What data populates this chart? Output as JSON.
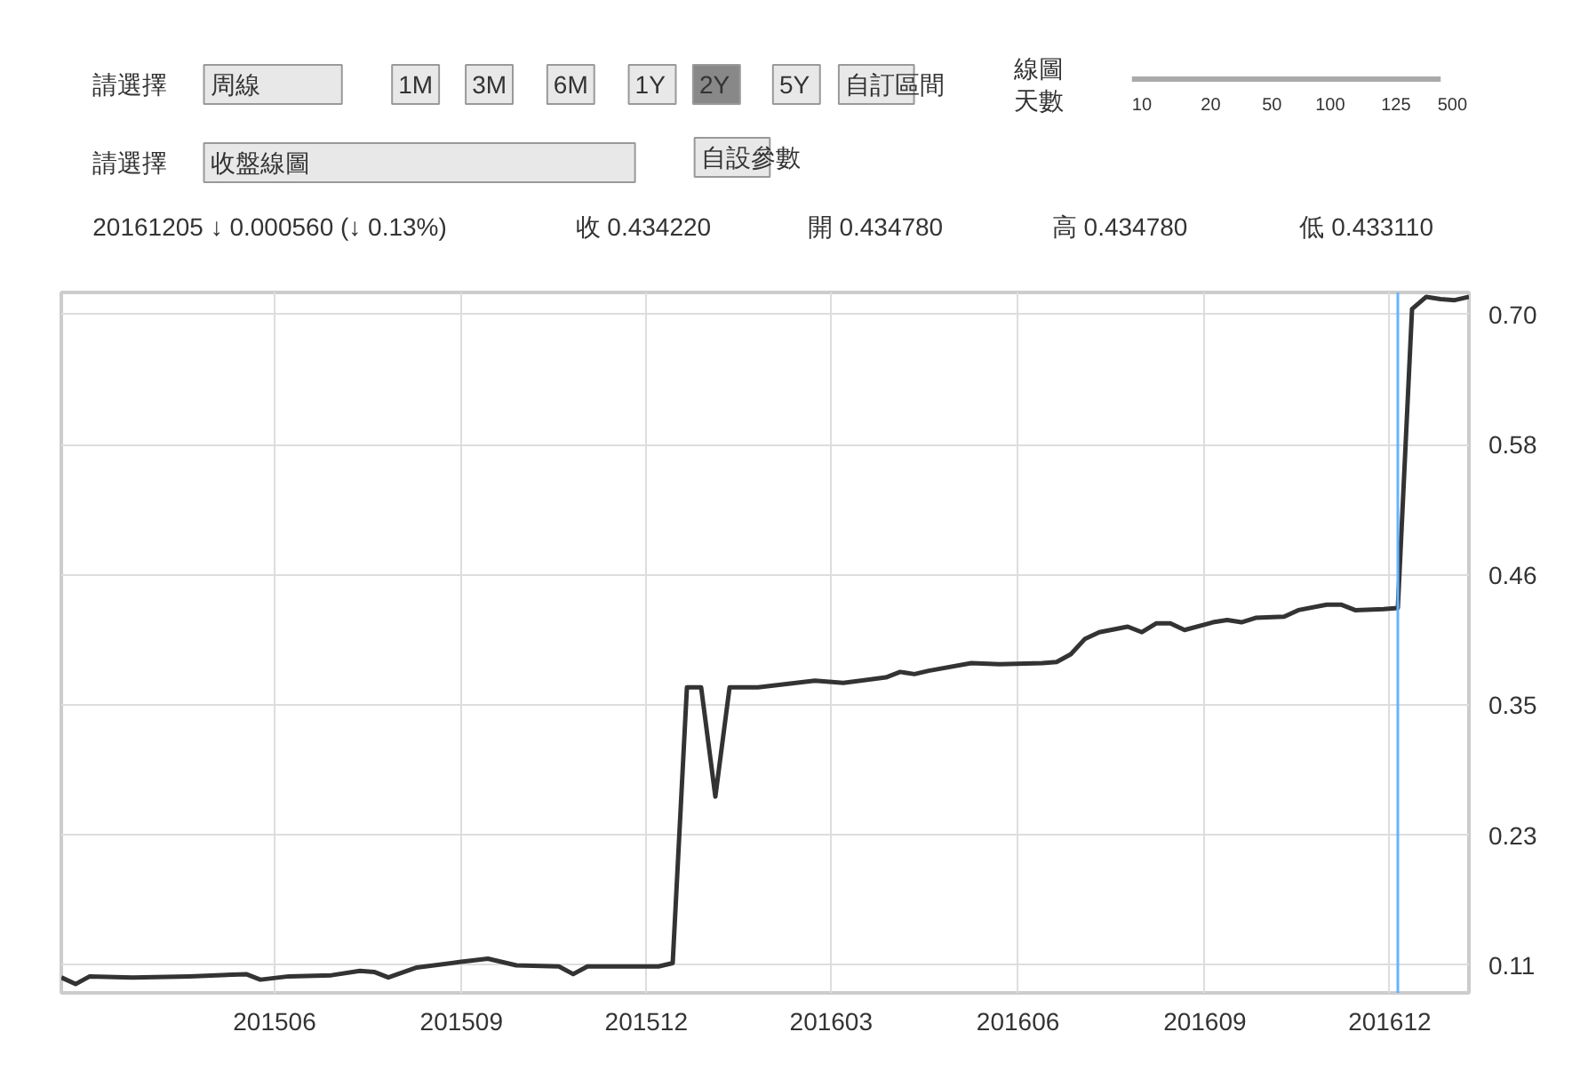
{
  "chart_data": {
    "type": "line",
    "subtitle": "20161205  ↓ 0.000560 (↓ 0.13%)",
    "annotations": [
      "請選擇",
      "周線",
      "1M",
      "3M",
      "6M",
      "1Y",
      "2Y",
      "5Y",
      "自訂區間",
      "線圖",
      "天數",
      "10",
      "20",
      "50",
      "100",
      "125",
      "500",
      "請選擇",
      "收盤線圖",
      "自設參數",
      "收 0.434220",
      "開 0.434780",
      "高 0.434780",
      "低 0.433110"
    ],
    "series": [
      {
        "color": "#333333",
        "x": [
          "2015-02-16",
          "2015-02-23",
          "2015-03-02",
          "2015-03-23",
          "2015-04-20",
          "2015-05-18",
          "2015-05-25",
          "2015-06-08",
          "2015-06-29",
          "2015-07-13",
          "2015-07-20",
          "2015-07-27",
          "2015-08-10",
          "2015-08-31",
          "2015-09-14",
          "2015-09-28",
          "2015-10-19",
          "2015-10-26",
          "2015-11-02",
          "2015-12-07",
          "2015-12-14",
          "2015-12-21",
          "2015-12-28",
          "2016-01-04",
          "2016-01-11",
          "2016-01-25",
          "2016-02-22",
          "2016-03-07",
          "2016-03-28",
          "2016-04-04",
          "2016-04-11",
          "2016-04-18",
          "2016-05-09",
          "2016-05-23",
          "2016-06-13",
          "2016-06-20",
          "2016-06-27",
          "2016-07-04",
          "2016-07-11",
          "2016-07-25",
          "2016-08-01",
          "2016-08-08",
          "2016-08-15",
          "2016-08-22",
          "2016-09-05",
          "2016-09-12",
          "2016-09-19",
          "2016-09-26",
          "2016-10-10",
          "2016-10-17",
          "2016-10-31",
          "2016-11-07",
          "2016-11-14",
          "2016-11-28",
          "2016-12-05",
          "2016-12-12",
          "2016-12-19",
          "2016-12-26",
          "2017-01-02",
          "2017-01-09"
        ],
        "values": [
          0.099,
          0.093,
          0.1,
          0.099,
          0.1,
          0.102,
          0.097,
          0.1,
          0.101,
          0.105,
          0.104,
          0.099,
          0.108,
          0.113,
          0.116,
          0.11,
          0.109,
          0.102,
          0.109,
          0.109,
          0.112,
          0.362,
          0.362,
          0.263,
          0.362,
          0.362,
          0.368,
          0.366,
          0.371,
          0.376,
          0.374,
          0.377,
          0.384,
          0.383,
          0.384,
          0.385,
          0.392,
          0.406,
          0.412,
          0.417,
          0.412,
          0.42,
          0.42,
          0.414,
          0.421,
          0.423,
          0.421,
          0.425,
          0.426,
          0.432,
          0.437,
          0.437,
          0.432,
          0.433,
          0.434,
          0.705,
          0.716,
          0.714,
          0.713,
          0.716
        ]
      }
    ],
    "xlim": [
      "2015-02-16",
      "2017-01-09"
    ],
    "xticks": [
      {
        "value": "2015-06-01",
        "label": "201506"
      },
      {
        "value": "2015-09-01",
        "label": "201509"
      },
      {
        "value": "2015-12-01",
        "label": "201512"
      },
      {
        "value": "2016-03-01",
        "label": "201603"
      },
      {
        "value": "2016-06-01",
        "label": "201606"
      },
      {
        "value": "2016-09-01",
        "label": "201609"
      },
      {
        "value": "2016-12-01",
        "label": "201612"
      }
    ],
    "ylim": [
      0.085,
      0.72
    ],
    "yticks": [
      {
        "value": 0.11,
        "label": "0.11"
      },
      {
        "value": 0.228,
        "label": "0.23"
      },
      {
        "value": 0.346,
        "label": "0.35"
      },
      {
        "value": 0.464,
        "label": "0.46"
      },
      {
        "value": 0.582,
        "label": "0.58"
      },
      {
        "value": 0.7,
        "label": "0.70"
      }
    ],
    "ref_lines": [
      {
        "axis": "x",
        "value": "2016-12-05",
        "color": "#66b3ff"
      }
    ],
    "grid": true,
    "line_style": "solid",
    "marker": "none"
  }
}
